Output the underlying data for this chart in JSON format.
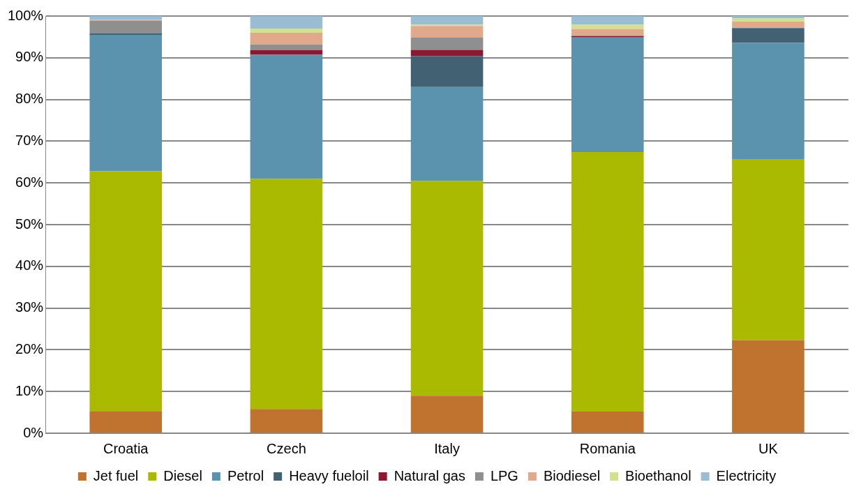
{
  "chart_data": {
    "type": "bar",
    "stacked": true,
    "categories": [
      "Croatia",
      "Czech",
      "Italy",
      "Romania",
      "UK"
    ],
    "series": [
      {
        "name": "Jet fuel",
        "color": "#c0732e",
        "values": [
          5.3,
          5.8,
          9.0,
          5.2,
          22.3
        ]
      },
      {
        "name": "Diesel",
        "color": "#a9ba00",
        "values": [
          57.5,
          55.2,
          51.5,
          62.2,
          43.3
        ]
      },
      {
        "name": "Petrol",
        "color": "#5b92ae",
        "values": [
          32.7,
          29.7,
          22.5,
          27.4,
          28.0
        ]
      },
      {
        "name": "Heavy fueloil",
        "color": "#426173",
        "values": [
          0.4,
          0,
          7.4,
          0.1,
          3.5
        ]
      },
      {
        "name": "Natural gas",
        "color": "#8c1732",
        "values": [
          0,
          1.1,
          1.5,
          0.3,
          0
        ]
      },
      {
        "name": "LPG",
        "color": "#8f8f8f",
        "values": [
          3.0,
          1.4,
          2.9,
          0.2,
          0
        ]
      },
      {
        "name": "Biodiesel",
        "color": "#e0a98b",
        "values": [
          0.2,
          2.8,
          2.8,
          1.5,
          1.6
        ]
      },
      {
        "name": "Bioethanol",
        "color": "#d4e18c",
        "values": [
          0,
          1.0,
          0.3,
          1.0,
          0.7
        ]
      },
      {
        "name": "Electricity",
        "color": "#9bbdd3",
        "values": [
          0.9,
          3.0,
          2.1,
          2.1,
          0.6
        ]
      }
    ],
    "ylim": [
      0,
      100
    ],
    "yticks": [
      {
        "value": 0,
        "label": "0%"
      },
      {
        "value": 10,
        "label": "10%"
      },
      {
        "value": 20,
        "label": "20%"
      },
      {
        "value": 30,
        "label": "30%"
      },
      {
        "value": 40,
        "label": "40%"
      },
      {
        "value": 50,
        "label": "50%"
      },
      {
        "value": 60,
        "label": "60%"
      },
      {
        "value": 70,
        "label": "70%"
      },
      {
        "value": 80,
        "label": "80%"
      },
      {
        "value": 90,
        "label": "90%"
      },
      {
        "value": 100,
        "label": "100%"
      }
    ],
    "grid": "y",
    "legend": "bottom"
  }
}
